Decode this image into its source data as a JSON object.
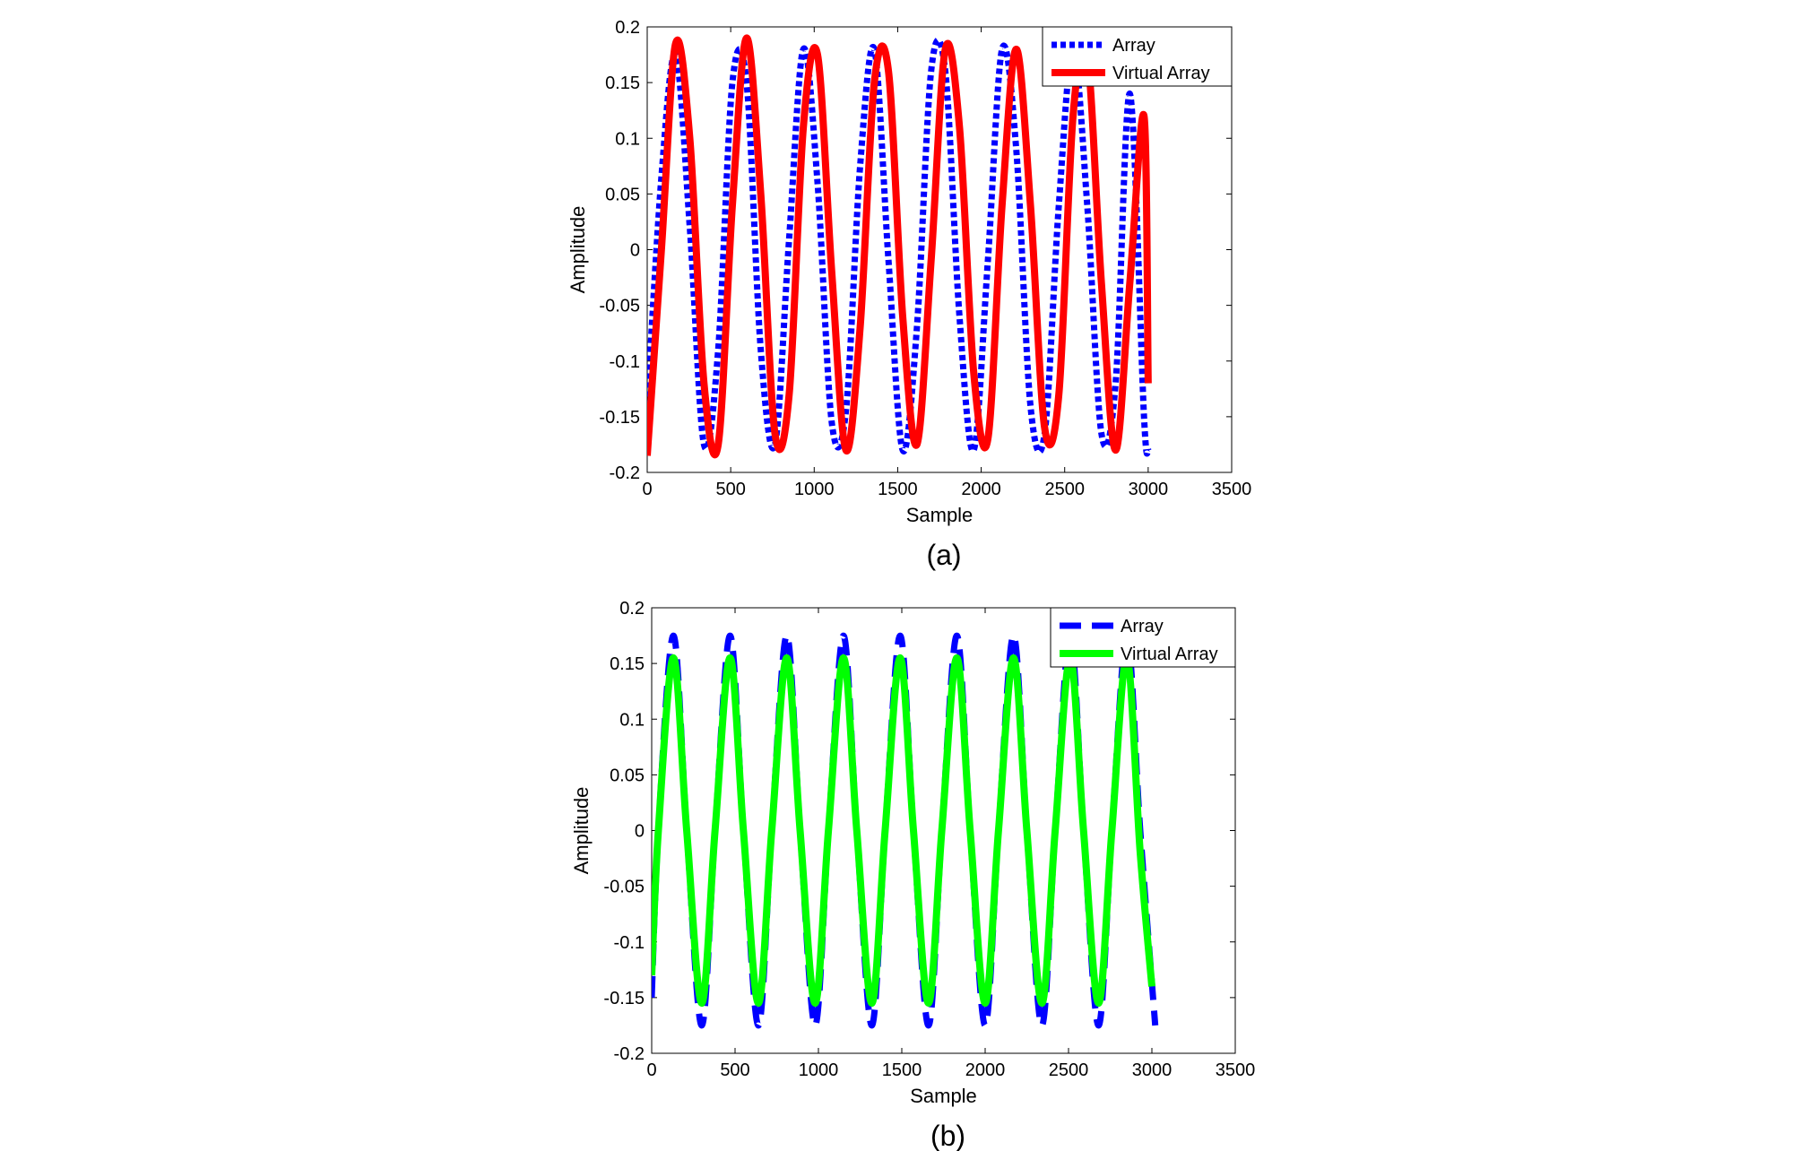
{
  "chart_data": [
    {
      "type": "line",
      "caption": "(a)",
      "xlabel": "Sample",
      "ylabel": "Amplitude",
      "xlim": [
        0,
        3500
      ],
      "ylim": [
        -0.2,
        0.2
      ],
      "xticks": [
        0,
        500,
        1000,
        1500,
        2000,
        2500,
        3000,
        3500
      ],
      "xtick_labels": [
        "0",
        "500",
        "1000",
        "1500",
        "2000",
        "2500",
        "3000",
        "3500"
      ],
      "yticks": [
        0.2,
        0.15,
        0.1,
        0.05,
        0,
        -0.05,
        -0.1,
        -0.15,
        -0.2
      ],
      "ytick_labels": [
        "0.2",
        "0.15",
        "0.1",
        "0.05",
        "0",
        "-0.05",
        "-0.1",
        "-0.15",
        "-0.2"
      ],
      "grid": false,
      "legend_position": "top-right",
      "series": [
        {
          "name": "Array",
          "color": "#0000ff",
          "style": "dotted",
          "x": [
            0,
            85,
            170,
            255,
            340,
            425,
            510,
            595,
            680,
            765,
            850,
            935,
            1020,
            1105,
            1190,
            1275,
            1360,
            1445,
            1530,
            1615,
            1700,
            1785,
            1870,
            1955,
            2040,
            2125,
            2210,
            2295,
            2380,
            2465,
            2550,
            2635,
            2720,
            2805,
            2890,
            2975,
            3000
          ],
          "y": [
            -0.14,
            0.065,
            0.175,
            0.02,
            -0.175,
            -0.09,
            0.15,
            0.15,
            -0.09,
            -0.175,
            0.01,
            0.18,
            0.06,
            -0.155,
            -0.145,
            0.075,
            0.18,
            -0.01,
            -0.18,
            -0.07,
            0.16,
            0.16,
            -0.06,
            -0.18,
            -0.01,
            0.18,
            0.09,
            -0.14,
            -0.165,
            0.04,
            0.18,
            0.04,
            -0.165,
            -0.12,
            0.14,
            -0.15,
            -0.18
          ]
        },
        {
          "name": "Virtual Array",
          "color": "#ff0000",
          "style": "solid",
          "x": [
            0,
            85,
            170,
            255,
            340,
            425,
            510,
            595,
            680,
            765,
            850,
            935,
            1020,
            1105,
            1190,
            1275,
            1360,
            1445,
            1530,
            1615,
            1700,
            1785,
            1870,
            1955,
            2040,
            2125,
            2210,
            2295,
            2380,
            2465,
            2550,
            2635,
            2720,
            2805,
            2890,
            2975,
            3000
          ],
          "y": [
            -0.185,
            0.0,
            0.185,
            0.1,
            -0.12,
            -0.175,
            0.04,
            0.19,
            0.05,
            -0.165,
            -0.13,
            0.11,
            0.175,
            -0.02,
            -0.18,
            -0.07,
            0.15,
            0.16,
            -0.06,
            -0.175,
            -0.01,
            0.18,
            0.11,
            -0.11,
            -0.17,
            0.04,
            0.18,
            0.04,
            -0.16,
            -0.13,
            0.12,
            0.175,
            -0.03,
            -0.18,
            -0.03,
            0.12,
            -0.12
          ]
        }
      ]
    },
    {
      "type": "line",
      "caption": "(b)",
      "xlabel": "Sample",
      "ylabel": "Amplitude",
      "xlim": [
        0,
        3500
      ],
      "ylim": [
        -0.2,
        0.2
      ],
      "xticks": [
        0,
        500,
        1000,
        1500,
        2000,
        2500,
        3000,
        3500
      ],
      "xtick_labels": [
        "0",
        "500",
        "1000",
        "1500",
        "2000",
        "2500",
        "3000",
        "3500"
      ],
      "yticks": [
        0.2,
        0.15,
        0.1,
        0.05,
        0,
        -0.05,
        -0.1,
        -0.15,
        -0.2
      ],
      "ytick_labels": [
        "0.2",
        "0.15",
        "0.1",
        "0.05",
        "0",
        "-0.05",
        "-0.1",
        "-0.15",
        "-0.2"
      ],
      "grid": false,
      "legend_position": "top-right",
      "series": [
        {
          "name": "Array",
          "color": "#0000ff",
          "style": "dashed",
          "x": [
            0,
            40,
            130,
            210,
            300,
            380,
            470,
            550,
            640,
            720,
            810,
            890,
            980,
            1060,
            1150,
            1230,
            1320,
            1400,
            1490,
            1570,
            1660,
            1740,
            1830,
            1910,
            2000,
            2080,
            2170,
            2250,
            2340,
            2420,
            2510,
            2590,
            2680,
            2760,
            2850,
            2930,
            3020
          ],
          "y": [
            -0.15,
            0.0,
            0.175,
            0.0,
            -0.175,
            0.0,
            0.175,
            0.0,
            -0.175,
            0.0,
            0.175,
            0.0,
            -0.175,
            0.0,
            0.175,
            0.0,
            -0.175,
            0.0,
            0.175,
            0.0,
            -0.175,
            0.0,
            0.175,
            0.0,
            -0.175,
            0.0,
            0.175,
            0.0,
            -0.175,
            0.0,
            0.175,
            0.0,
            -0.175,
            0.0,
            0.175,
            0.0,
            -0.175
          ]
        },
        {
          "name": "Virtual Array",
          "color": "#00ff00",
          "style": "solid",
          "x": [
            0,
            40,
            130,
            210,
            300,
            380,
            470,
            550,
            640,
            720,
            810,
            890,
            980,
            1060,
            1150,
            1230,
            1320,
            1400,
            1490,
            1570,
            1660,
            1740,
            1830,
            1910,
            2000,
            2080,
            2170,
            2250,
            2340,
            2420,
            2510,
            2590,
            2680,
            2760,
            2850,
            2930,
            3000
          ],
          "y": [
            -0.13,
            0.0,
            0.155,
            0.0,
            -0.155,
            0.0,
            0.155,
            0.0,
            -0.155,
            0.0,
            0.155,
            0.0,
            -0.155,
            0.0,
            0.155,
            0.0,
            -0.155,
            0.0,
            0.155,
            0.0,
            -0.155,
            0.0,
            0.155,
            0.0,
            -0.155,
            0.0,
            0.155,
            0.0,
            -0.155,
            0.0,
            0.155,
            0.0,
            -0.155,
            0.0,
            0.155,
            -0.02,
            -0.14
          ]
        }
      ]
    }
  ]
}
